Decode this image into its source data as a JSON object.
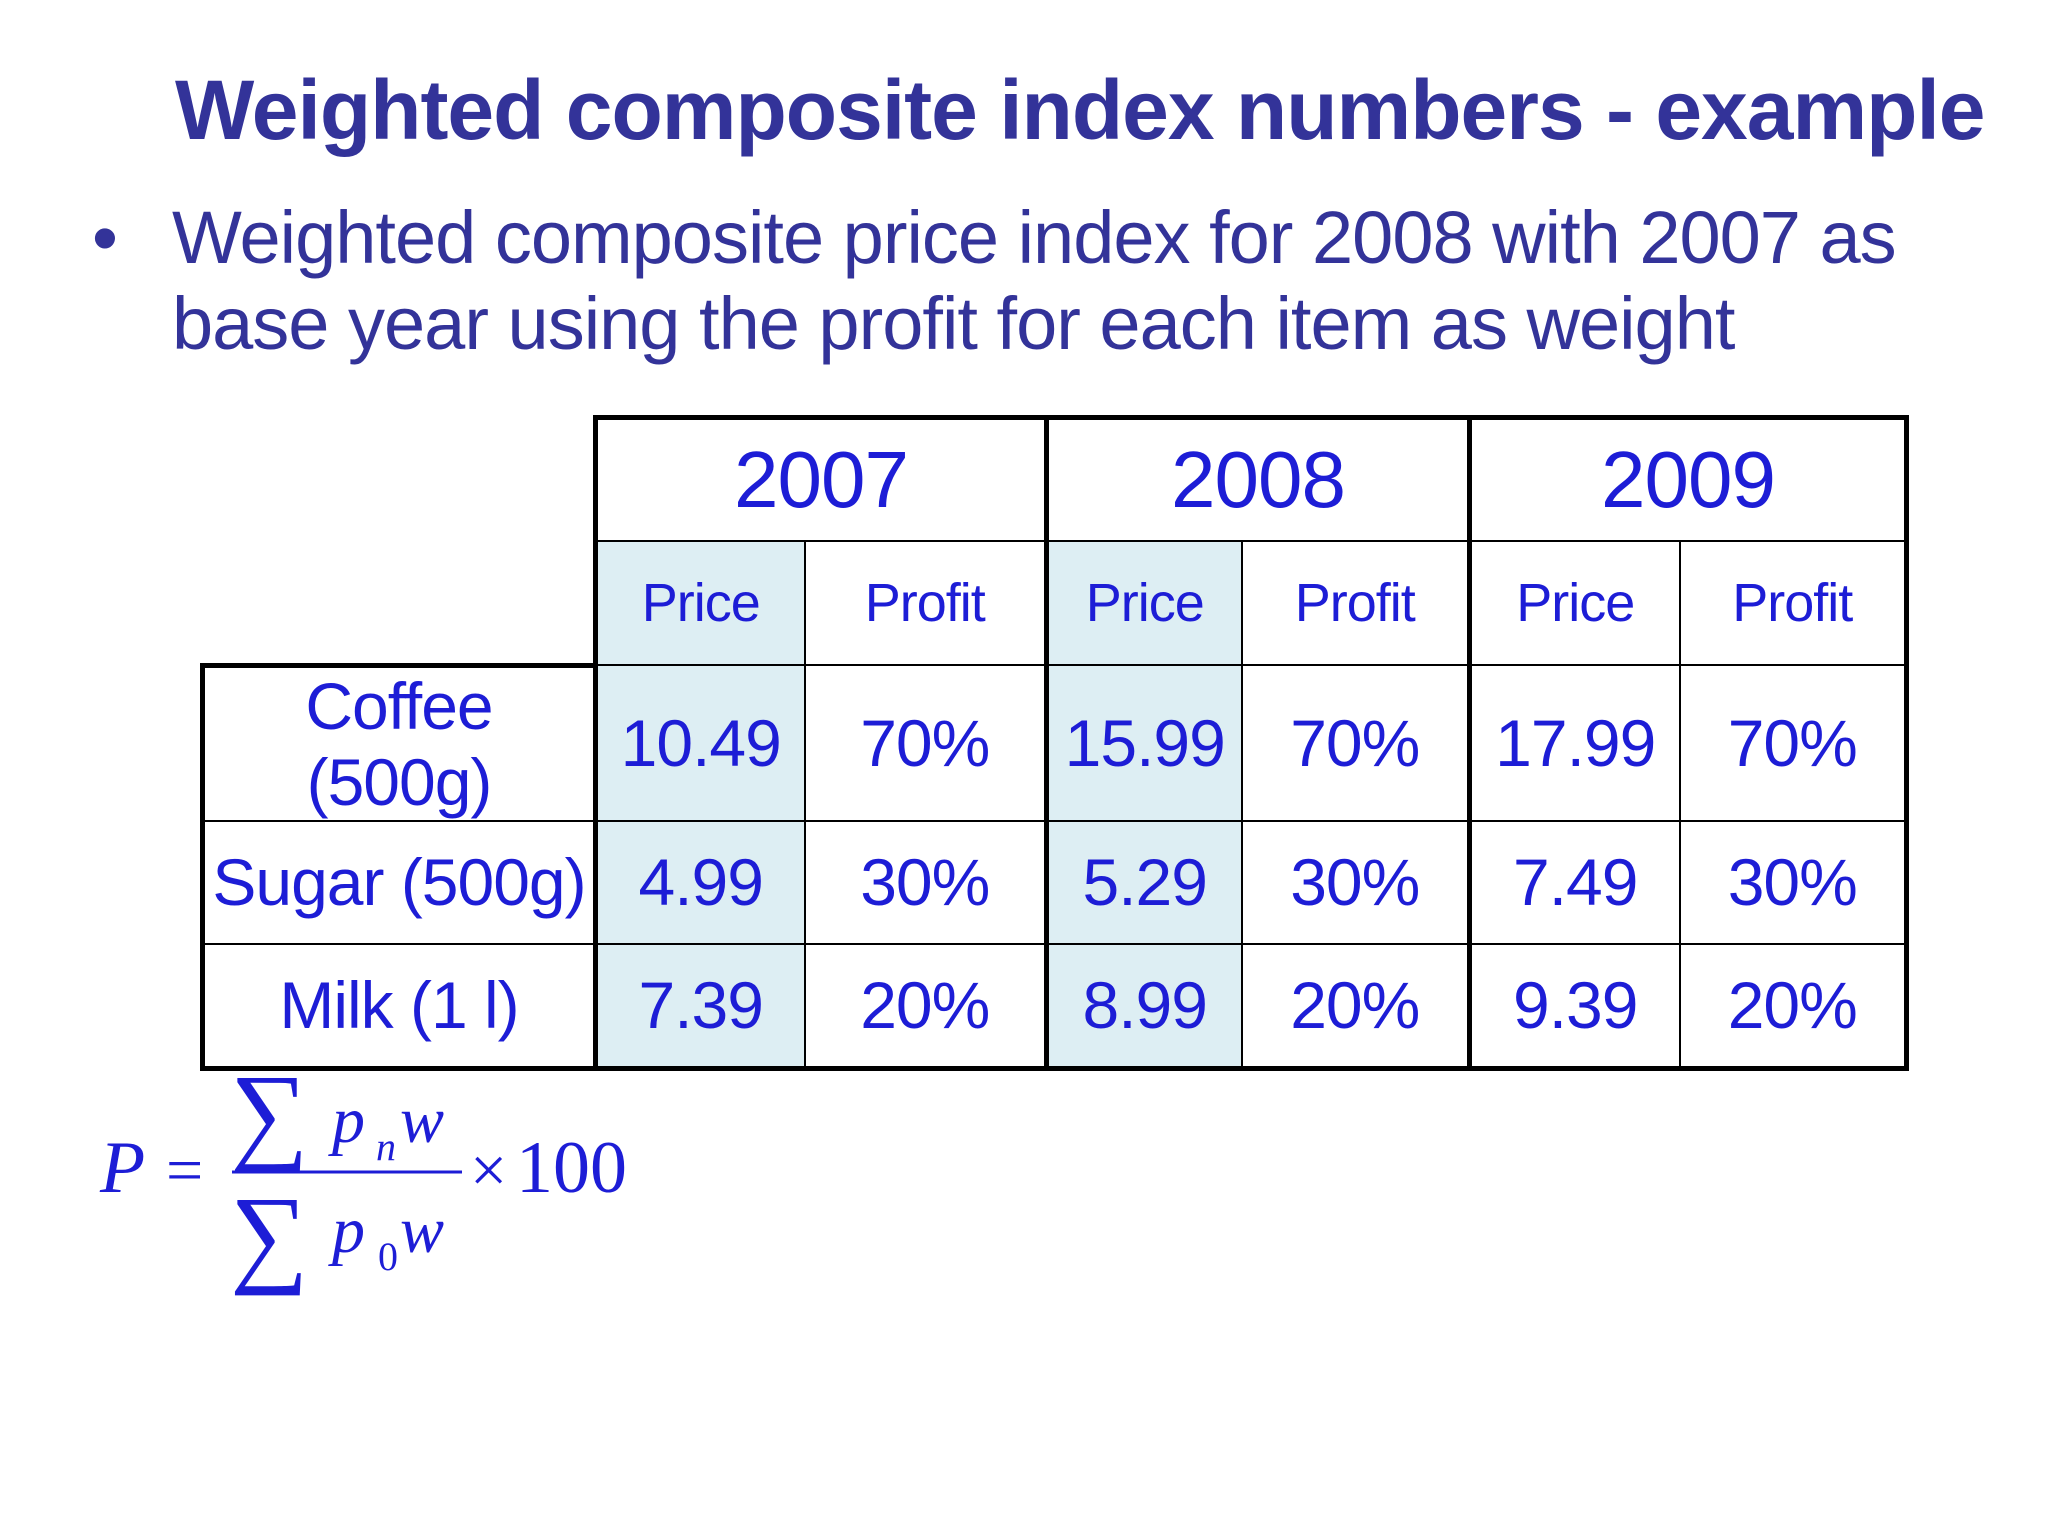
{
  "slide": {
    "title": "Weighted composite index numbers - example",
    "bullet_symbol": "•",
    "bullet_text": "Weighted composite price index for 2008 with 2007 as base year using the profit for each item as weight"
  },
  "table": {
    "years": [
      "2007",
      "2008",
      "2009"
    ],
    "sub_headers": [
      "Price",
      "Profit",
      "Price",
      "Profit",
      "Price",
      "Profit"
    ],
    "rows": [
      {
        "label": "Coffee (500g)",
        "cells": [
          "10.49",
          "70%",
          "15.99",
          "70%",
          "17.99",
          "70%"
        ]
      },
      {
        "label": "Sugar (500g)",
        "cells": [
          "4.99",
          "30%",
          "5.29",
          "30%",
          "7.49",
          "30%"
        ]
      },
      {
        "label": "Milk (1 l)",
        "cells": [
          "7.39",
          "20%",
          "8.99",
          "20%",
          "9.39",
          "20%"
        ]
      }
    ],
    "shade_color": "#ddeef3",
    "text_color": "#1d1dd6"
  },
  "formula": {
    "lhs": "P",
    "equals": "=",
    "sum": "∑",
    "num_p": "p",
    "num_sub": "n",
    "num_w": "w",
    "den_p": "p",
    "den_sub": "0",
    "den_w": "w",
    "times": "×",
    "constant": "100"
  }
}
